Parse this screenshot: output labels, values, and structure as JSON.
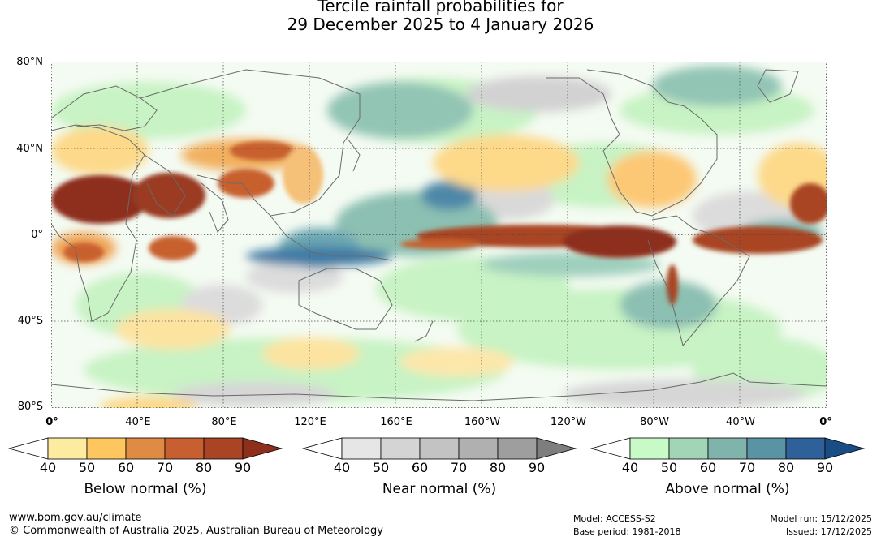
{
  "title": {
    "line1": "Tercile rainfall probabilities for",
    "line2": "29 December 2025 to 4 January 2026"
  },
  "map": {
    "lat_labels": [
      "80°N",
      "40°N",
      "0°",
      "40°S",
      "80°S"
    ],
    "lon_labels": [
      "0°",
      "40°E",
      "80°E",
      "120°E",
      "160°E",
      "160°W",
      "120°W",
      "80°W",
      "40°W",
      "0°"
    ]
  },
  "legends": [
    {
      "caption": "Below normal (%)",
      "ticks": [
        "40",
        "50",
        "60",
        "70",
        "80",
        "90"
      ],
      "colors": [
        "#ffffff",
        "#fdeba0",
        "#fdc65e",
        "#df8b43",
        "#c85f30",
        "#a94424",
        "#8e2f1b"
      ]
    },
    {
      "caption": "Near normal (%)",
      "ticks": [
        "40",
        "50",
        "60",
        "70",
        "80",
        "90"
      ],
      "colors": [
        "#ffffff",
        "#e6e6e6",
        "#d4d4d4",
        "#c3c3c3",
        "#b0b0b0",
        "#9e9e9e",
        "#7e7e7e"
      ]
    },
    {
      "caption": "Above normal (%)",
      "ticks": [
        "40",
        "50",
        "60",
        "70",
        "80",
        "90"
      ],
      "colors": [
        "#ffffff",
        "#c8fac8",
        "#a2d5b5",
        "#7fb3ac",
        "#5a93a3",
        "#2e6099",
        "#1a4c86"
      ]
    }
  ],
  "footer": {
    "url": "www.bom.gov.au/climate",
    "copyright": "© Commonwealth of Australia 2025, Australian Bureau of Meteorology",
    "model": "Model: ACCESS-S2",
    "base_period": "Base period: 1981-2018",
    "model_run": "Model run: 15/12/2025",
    "issued": "Issued: 17/12/2025"
  }
}
